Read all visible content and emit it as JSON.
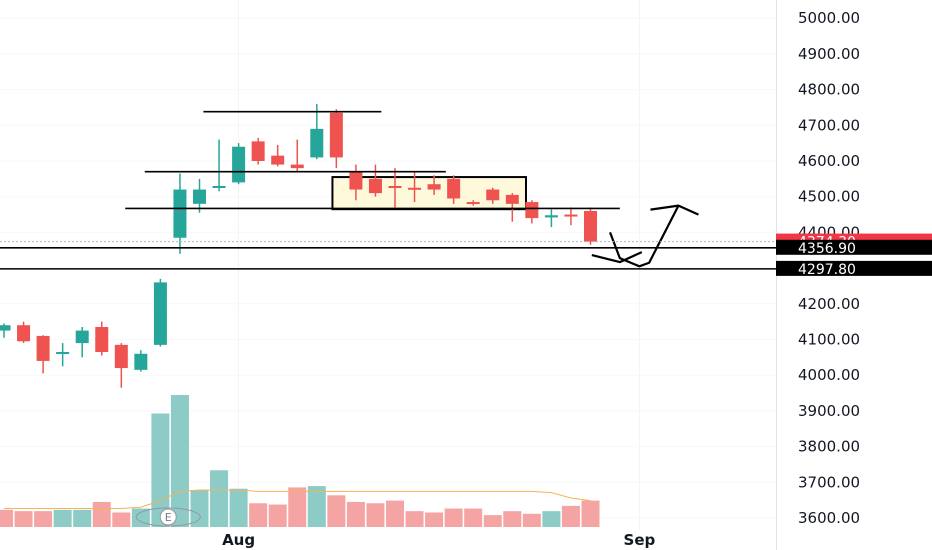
{
  "chart_data": {
    "type": "candlestick",
    "ylim": [
      3565,
      5030
    ],
    "y_ticks": [
      3600,
      3700,
      3800,
      3900,
      4000,
      4100,
      4200,
      4300,
      4400,
      4500,
      4600,
      4700,
      4800,
      4900,
      5000
    ],
    "y_tick_labels": [
      "3600.00",
      "3700.00",
      "3800.00",
      "3900.00",
      "4000.00",
      "4100.00",
      "4200.00",
      "4300.00",
      "4400.00",
      "4500.00",
      "4600.00",
      "4700.00",
      "4800.00",
      "4900.00",
      "5000.00"
    ],
    "x_labels": [
      {
        "label": "Aug",
        "index": 12
      },
      {
        "label": "Sep",
        "index": 32.5
      }
    ],
    "earnings_marker": {
      "label": "E",
      "index": 8.4
    },
    "candles": [
      {
        "open": 4125,
        "high": 4145,
        "low": 4105,
        "close": 4140
      },
      {
        "open": 4140,
        "high": 4150,
        "low": 4090,
        "close": 4095
      },
      {
        "open": 4110,
        "high": 4112,
        "low": 4005,
        "close": 4040
      },
      {
        "open": 4060,
        "high": 4090,
        "low": 4025,
        "close": 4065
      },
      {
        "open": 4090,
        "high": 4135,
        "low": 4050,
        "close": 4125
      },
      {
        "open": 4135,
        "high": 4150,
        "low": 4055,
        "close": 4065
      },
      {
        "open": 4085,
        "high": 4090,
        "low": 3965,
        "close": 4020
      },
      {
        "open": 4015,
        "high": 4070,
        "low": 4010,
        "close": 4060
      },
      {
        "open": 4085,
        "high": 4270,
        "low": 4080,
        "close": 4260
      },
      {
        "open": 4385,
        "high": 4565,
        "low": 4340,
        "close": 4520
      },
      {
        "open": 4480,
        "high": 4550,
        "low": 4455,
        "close": 4520
      },
      {
        "open": 4525,
        "high": 4660,
        "low": 4515,
        "close": 4530
      },
      {
        "open": 4540,
        "high": 4650,
        "low": 4535,
        "close": 4640
      },
      {
        "open": 4655,
        "high": 4665,
        "low": 4590,
        "close": 4600
      },
      {
        "open": 4615,
        "high": 4645,
        "low": 4585,
        "close": 4590
      },
      {
        "open": 4590,
        "high": 4660,
        "low": 4570,
        "close": 4580
      },
      {
        "open": 4610,
        "high": 4760,
        "low": 4605,
        "close": 4690
      },
      {
        "open": 4735,
        "high": 4745,
        "low": 4580,
        "close": 4610
      },
      {
        "open": 4570,
        "high": 4590,
        "low": 4490,
        "close": 4520
      },
      {
        "open": 4550,
        "high": 4590,
        "low": 4500,
        "close": 4510
      },
      {
        "open": 4530,
        "high": 4580,
        "low": 4470,
        "close": 4525
      },
      {
        "open": 4525,
        "high": 4570,
        "low": 4485,
        "close": 4520
      },
      {
        "open": 4535,
        "high": 4560,
        "low": 4505,
        "close": 4520
      },
      {
        "open": 4550,
        "high": 4560,
        "low": 4480,
        "close": 4495
      },
      {
        "open": 4485,
        "high": 4490,
        "low": 4475,
        "close": 4480
      },
      {
        "open": 4520,
        "high": 4525,
        "low": 4480,
        "close": 4490
      },
      {
        "open": 4505,
        "high": 4510,
        "low": 4430,
        "close": 4480
      },
      {
        "open": 4485,
        "high": 4490,
        "low": 4425,
        "close": 4440
      },
      {
        "open": 4442,
        "high": 4465,
        "low": 4415,
        "close": 4448
      },
      {
        "open": 4450,
        "high": 4470,
        "low": 4420,
        "close": 4445
      },
      {
        "open": 4460,
        "high": 4470,
        "low": 4365,
        "close": 4374
      }
    ],
    "volume": [
      {
        "value": 0.13,
        "dir": "down"
      },
      {
        "value": 0.12,
        "dir": "down"
      },
      {
        "value": 0.12,
        "dir": "down"
      },
      {
        "value": 0.13,
        "dir": "up"
      },
      {
        "value": 0.13,
        "dir": "up"
      },
      {
        "value": 0.19,
        "dir": "down"
      },
      {
        "value": 0.11,
        "dir": "down"
      },
      {
        "value": 0.14,
        "dir": "up"
      },
      {
        "value": 0.86,
        "dir": "up"
      },
      {
        "value": 1.0,
        "dir": "up"
      },
      {
        "value": 0.28,
        "dir": "up"
      },
      {
        "value": 0.43,
        "dir": "up"
      },
      {
        "value": 0.29,
        "dir": "up"
      },
      {
        "value": 0.18,
        "dir": "down"
      },
      {
        "value": 0.17,
        "dir": "down"
      },
      {
        "value": 0.3,
        "dir": "down"
      },
      {
        "value": 0.31,
        "dir": "up"
      },
      {
        "value": 0.24,
        "dir": "down"
      },
      {
        "value": 0.19,
        "dir": "down"
      },
      {
        "value": 0.18,
        "dir": "down"
      },
      {
        "value": 0.2,
        "dir": "down"
      },
      {
        "value": 0.12,
        "dir": "down"
      },
      {
        "value": 0.11,
        "dir": "down"
      },
      {
        "value": 0.14,
        "dir": "down"
      },
      {
        "value": 0.14,
        "dir": "down"
      },
      {
        "value": 0.09,
        "dir": "down"
      },
      {
        "value": 0.12,
        "dir": "down"
      },
      {
        "value": 0.1,
        "dir": "down"
      },
      {
        "value": 0.12,
        "dir": "up"
      },
      {
        "value": 0.16,
        "dir": "down"
      },
      {
        "value": 0.2,
        "dir": "down"
      }
    ],
    "volume_ma": [
      0.14,
      0.14,
      0.14,
      0.14,
      0.14,
      0.14,
      0.14,
      0.15,
      0.2,
      0.27,
      0.28,
      0.28,
      0.28,
      0.27,
      0.27,
      0.27,
      0.27,
      0.27,
      0.27,
      0.27,
      0.27,
      0.27,
      0.27,
      0.27,
      0.27,
      0.27,
      0.27,
      0.27,
      0.26,
      0.22,
      0.2
    ],
    "drawings": {
      "horizontal_levels": [
        {
          "price": 4738,
          "from": 10.2,
          "to": 19.3
        },
        {
          "price": 4570,
          "from": 7.2,
          "to": 22.6
        },
        {
          "price": 4467,
          "from": 6.2,
          "to": 31.5
        }
      ],
      "rectangle": {
        "from": 16.8,
        "to": 26.7,
        "top": 4555,
        "bottom": 4465
      },
      "arrow_path": [
        [
          31.0,
          4400
        ],
        [
          31.5,
          4328
        ],
        [
          32.5,
          4305
        ],
        [
          33.0,
          4315
        ],
        [
          34.5,
          4475
        ]
      ],
      "arrow_head_at": [
        34.5,
        4475
      ]
    },
    "price_levels": [
      {
        "price": 4374.3,
        "label": "4374.30",
        "color": "#f23645",
        "style": "dotted"
      },
      {
        "price": 4356.9,
        "label": "4356.90",
        "color": "#000000",
        "style": "solid"
      },
      {
        "price": 4297.8,
        "label": "4297.80",
        "color": "#000000",
        "style": "solid"
      }
    ],
    "colors": {
      "up": "#26a69a",
      "down": "#ef5350",
      "vol_up": "#8ccbc6",
      "vol_down": "#f5a4a4",
      "ma": "#f5b35a",
      "box_fill": "#fff7cf",
      "grid": "#f0f3fa"
    }
  }
}
